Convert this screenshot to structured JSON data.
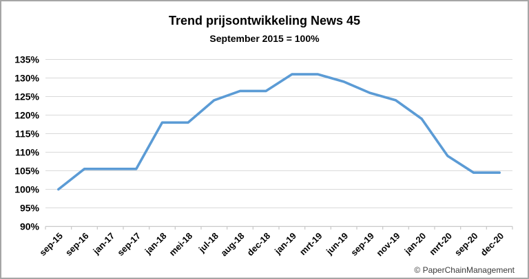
{
  "header": {
    "title": "Trend prijsontwikkeling News 45",
    "subtitle": "September 2015 = 100%"
  },
  "footer": {
    "copyright": "© PaperChainManagement"
  },
  "colors": {
    "line": "#5B9BD5",
    "gridline": "#D9D9D9",
    "axis": "#C8C8C8",
    "frame_border": "#A6A6A6",
    "text": "#000000",
    "footer_text": "#3A3A3A"
  },
  "chart_data": {
    "type": "line",
    "title": "Trend prijsontwikkeling News 45",
    "subtitle": "September 2015 = 100%",
    "categories": [
      "sep-15",
      "sep-16",
      "jan-17",
      "sep-17",
      "jan-18",
      "mei-18",
      "jul-18",
      "aug-18",
      "dec-18",
      "jan-19",
      "mrt-19",
      "jun-19",
      "sep-19",
      "nov-19",
      "jan-20",
      "mrt-20",
      "sep-20",
      "dec-20"
    ],
    "values": [
      100,
      105.5,
      105.5,
      105.5,
      118,
      118,
      124,
      126.5,
      126.5,
      131,
      131,
      129,
      126,
      124,
      119,
      109,
      104.5,
      104.5
    ],
    "xlabel": "",
    "ylabel": "",
    "ylim": [
      90,
      135
    ],
    "ytick_step": 5,
    "ytick_labels": [
      "135%",
      "130%",
      "125%",
      "120%",
      "115%",
      "110%",
      "105%",
      "100%",
      "95%",
      "90%"
    ],
    "grid": "horizontal",
    "legend": "none",
    "markers": false,
    "x_label_rotation": -45
  }
}
